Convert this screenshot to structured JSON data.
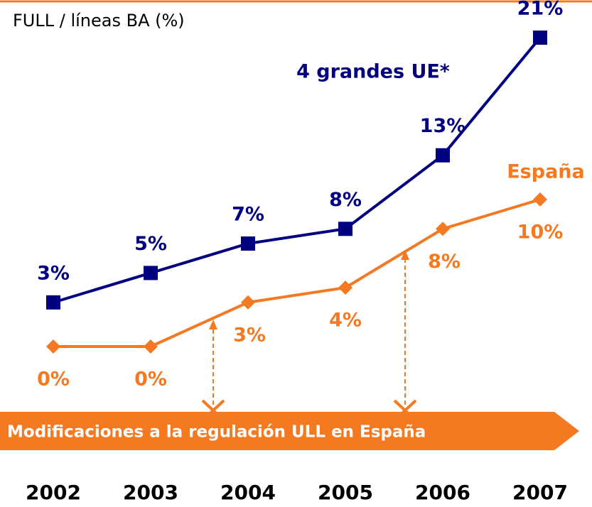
{
  "chart_data": {
    "type": "line",
    "title": "FULL / líneas BA (%)",
    "categories": [
      "2002",
      "2003",
      "2004",
      "2005",
      "2006",
      "2007"
    ],
    "ylim": [
      0,
      21
    ],
    "series": [
      {
        "name": "4 grandes UE*",
        "color": "#000080",
        "values": [
          3,
          5,
          7,
          8,
          13,
          21
        ],
        "value_labels": [
          "3%",
          "5%",
          "7%",
          "8%",
          "13%",
          "21%"
        ]
      },
      {
        "name": "España",
        "color": "#f47920",
        "values": [
          0,
          0,
          3,
          4,
          8,
          10
        ],
        "value_labels": [
          "0%",
          "0%",
          "3%",
          "4%",
          "8%",
          "10%"
        ]
      }
    ],
    "annotation": "Modificaciones a la regulación ULL en España"
  }
}
